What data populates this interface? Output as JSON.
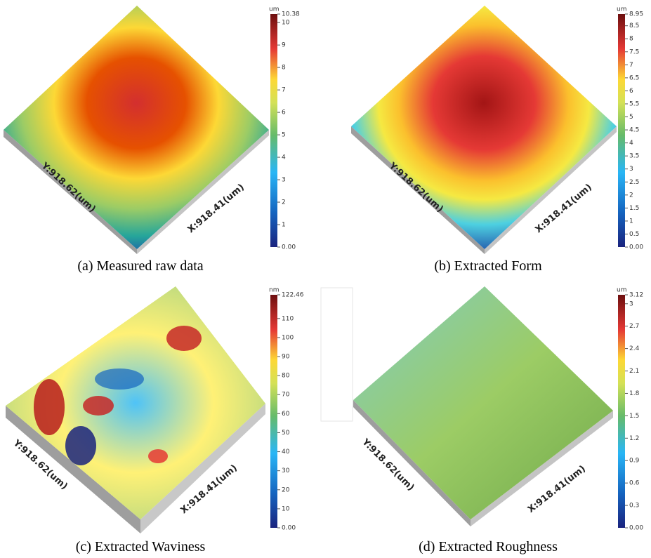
{
  "panels": [
    {
      "caption": "(a) Measured raw data",
      "unit": "um",
      "y_axis": "Y:918.62(um)",
      "x_axis": "X:918.41(um)",
      "ticks": [
        {
          "value": 0,
          "label": "0.00"
        },
        1,
        2,
        3,
        4,
        5,
        6,
        7,
        8,
        9,
        10,
        10.38
      ]
    },
    {
      "caption": "(b) Extracted Form",
      "unit": "um",
      "y_axis": "Y:918.62(um)",
      "x_axis": "X:918.41(um)",
      "ticks": [
        {
          "value": 0,
          "label": "0.00"
        },
        0.5,
        1,
        1.5,
        2,
        2.5,
        3,
        3.5,
        4,
        4.5,
        5,
        5.5,
        6,
        6.5,
        7,
        7.5,
        8,
        8.5,
        8.95
      ]
    },
    {
      "caption": "(c) Extracted Waviness",
      "unit": "nm",
      "y_axis": "Y:918.62(um)",
      "x_axis": "X:918.41(um)",
      "ticks": [
        {
          "value": 0,
          "label": "0.00"
        },
        10,
        20,
        30,
        40,
        50,
        60,
        70,
        80,
        90,
        100,
        110,
        122.46
      ]
    },
    {
      "caption": "(d) Extracted Roughness",
      "unit": "um",
      "y_axis": "Y:918.62(um)",
      "x_axis": "X:918.41(um)",
      "ticks": [
        {
          "value": 0,
          "label": "0.00"
        },
        0.3,
        0.6,
        0.9,
        1.2,
        1.5,
        1.8,
        2.1,
        2.4,
        2.7,
        3,
        3.12
      ]
    }
  ]
}
